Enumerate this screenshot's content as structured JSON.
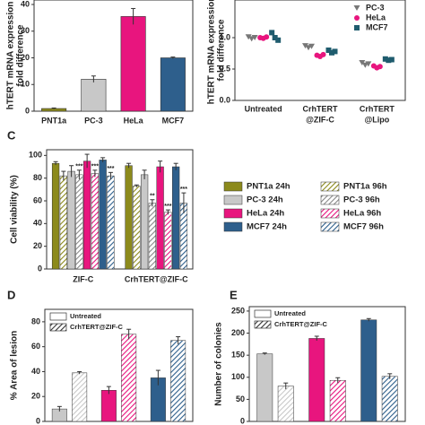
{
  "chart_data": [
    {
      "type": "bar",
      "ylabel": [
        "hTERT mRNA expression",
        "fold difference"
      ],
      "categories": [
        "PNT1a",
        "PC-3",
        "HeLa",
        "MCF7"
      ],
      "values": [
        1,
        12,
        35.5,
        20
      ],
      "errors": [
        0.2,
        1.2,
        3,
        0.3
      ],
      "colors": [
        "#8c8a1c",
        "#c8c8c8",
        "#e8157e",
        "#2e5f8c"
      ],
      "ylim": [
        0,
        40
      ],
      "yticks": [
        0,
        10,
        20,
        30,
        40
      ]
    },
    {
      "type": "dot",
      "ylabel": [
        "hTERT mRNA expression",
        "fold difference"
      ],
      "categories": [
        [
          "Untreated"
        ],
        [
          "CrhTERT",
          "@ZIF-C"
        ],
        [
          "CrhTERT",
          "@Lipo"
        ]
      ],
      "series": [
        {
          "name": "PC-3",
          "color": "#777777",
          "marker": "triangle",
          "values": [
            [
              1.01,
              0.98,
              1.0
            ],
            [
              0.87,
              0.84,
              0.86
            ],
            [
              0.6,
              0.56,
              0.58
            ]
          ]
        },
        {
          "name": "HeLa",
          "color": "#e8157e",
          "marker": "circle",
          "values": [
            [
              1.0,
              0.99,
              1.01
            ],
            [
              0.72,
              0.7,
              0.73
            ],
            [
              0.55,
              0.52,
              0.54
            ]
          ]
        },
        {
          "name": "MCF7",
          "color": "#1f5c6e",
          "marker": "square",
          "values": [
            [
              1.08,
              1.0,
              0.96
            ],
            [
              0.8,
              0.76,
              0.78
            ],
            [
              0.66,
              0.64,
              0.65
            ]
          ]
        }
      ],
      "ylim": [
        0,
        1.5
      ],
      "yticks": [
        {
          "value": 0,
          "label": "0.0"
        },
        {
          "value": 0.5,
          "label": "0.5"
        },
        {
          "value": 1,
          "label": "1.0"
        }
      ]
    },
    {
      "type": "grouped_bar",
      "panel": "C",
      "ylabel": [
        "Cell viability (%)"
      ],
      "categories": [
        "ZIF-C",
        "CrhTERT@ZIF-C"
      ],
      "series": [
        {
          "name": "PNT1a 24h",
          "color": "#8c8a1c",
          "hatch": false,
          "values": [
            93,
            91
          ],
          "errors": [
            1.5,
            2
          ],
          "significance": [
            null,
            null
          ]
        },
        {
          "name": "PNT1a 96h",
          "color": "#8c8a1c",
          "hatch": true,
          "values": [
            82,
            73
          ],
          "errors": [
            4,
            1
          ],
          "significance": [
            null,
            null
          ]
        },
        {
          "name": "PC-3 24h",
          "color": "#c8c8c8",
          "hatch": false,
          "values": [
            86,
            83
          ],
          "errors": [
            5,
            4
          ],
          "significance": [
            null,
            null
          ]
        },
        {
          "name": "PC-3 96h",
          "color": "#888888",
          "hatch": true,
          "values": [
            83,
            58
          ],
          "errors": [
            4,
            3
          ],
          "significance": [
            "***",
            "**"
          ]
        },
        {
          "name": "HeLa 24h",
          "color": "#e8157e",
          "hatch": false,
          "values": [
            95,
            90
          ],
          "errors": [
            6,
            5
          ],
          "significance": [
            null,
            null
          ]
        },
        {
          "name": "HeLa 96h",
          "color": "#e8157e",
          "hatch": true,
          "values": [
            84,
            50
          ],
          "errors": [
            3,
            2
          ],
          "significance": [
            "***",
            "***"
          ]
        },
        {
          "name": "MCF7 24h",
          "color": "#2e5f8c",
          "hatch": false,
          "values": [
            96,
            90
          ],
          "errors": [
            2,
            3
          ],
          "significance": [
            null,
            null
          ]
        },
        {
          "name": "MCF7 96h",
          "color": "#2e5f8c",
          "hatch": true,
          "values": [
            82,
            58
          ],
          "errors": [
            3,
            9
          ],
          "significance": [
            "***",
            "***"
          ]
        }
      ],
      "ylim": [
        0,
        105
      ],
      "yticks": [
        0,
        20,
        40,
        60,
        80,
        100
      ]
    },
    {
      "type": "paired_bar",
      "panel": "D",
      "ylabel": [
        "% Area of lesion"
      ],
      "categories": [
        null,
        null,
        null
      ],
      "category_colors": [
        "#c8c8c8",
        "#e8157e",
        "#2e5f8c"
      ],
      "series": [
        {
          "name": "Untreated",
          "hatch": false,
          "values": [
            10,
            25,
            35
          ],
          "errors": [
            2,
            3,
            6
          ]
        },
        {
          "name": "CrhTERT@ZIF-C",
          "hatch": true,
          "values": [
            39,
            70,
            65
          ],
          "errors": [
            1,
            4,
            3
          ]
        }
      ],
      "ylim": [
        0,
        90
      ],
      "yticks": [
        0,
        20,
        40,
        60,
        80
      ]
    },
    {
      "type": "paired_bar",
      "panel": "E",
      "ylabel": [
        "Number of colonies"
      ],
      "categories": [
        null,
        null,
        null
      ],
      "category_colors": [
        "#c8c8c8",
        "#e8157e",
        "#2e5f8c"
      ],
      "series": [
        {
          "name": "Untreated",
          "hatch": false,
          "values": [
            153,
            188,
            230
          ],
          "errors": [
            2,
            5,
            3
          ]
        },
        {
          "name": "CrhTERT@ZIF-C",
          "hatch": true,
          "values": [
            80,
            93,
            102
          ],
          "errors": [
            7,
            6,
            6
          ]
        }
      ],
      "ylim": [
        0,
        260
      ],
      "yticks": [
        0,
        50,
        100,
        150,
        200,
        250
      ]
    }
  ]
}
